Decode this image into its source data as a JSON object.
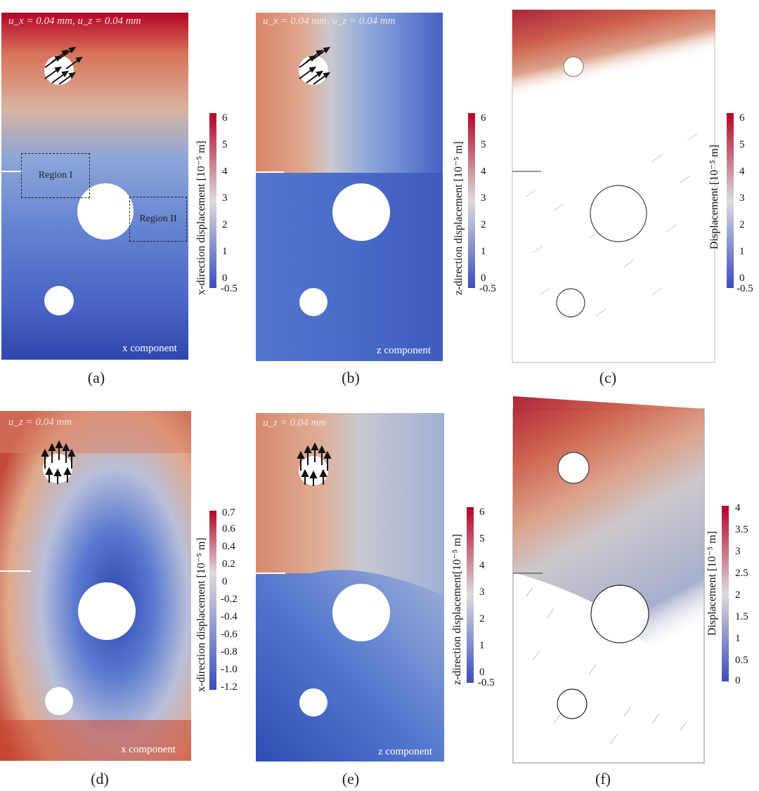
{
  "panels": {
    "a": {
      "caption": "(a)",
      "load_label": "u_x = 0.04 mm, u_z = 0.04 mm",
      "component": "x component",
      "cbar_title": "x-direction displacement [10⁻⁵ m]",
      "ticks": [
        "6",
        "5",
        "4",
        "3",
        "2",
        "1",
        "0",
        "-0.5"
      ],
      "regions": [
        "Region I",
        "Region II"
      ]
    },
    "b": {
      "caption": "(b)",
      "load_label": "u_x = 0.04 mm, u_z = 0.04 mm",
      "component": "z component",
      "cbar_title": "z-direction displacement [10⁻⁵ m]",
      "ticks": [
        "6",
        "5",
        "4",
        "3",
        "2",
        "1",
        "0",
        "-0.5"
      ]
    },
    "c": {
      "caption": "(c)",
      "cbar_title": "Displacement [10⁻⁵ m]",
      "ticks": [
        "6",
        "5",
        "4",
        "3",
        "2",
        "1",
        "0",
        "-0.5"
      ]
    },
    "d": {
      "caption": "(d)",
      "load_label": "u_z = 0.04 mm",
      "component": "x component",
      "cbar_title": "x-direction displacement [10⁻⁵ m]",
      "ticks": [
        "0.7",
        "0.6",
        "0.4",
        "0.2",
        "0",
        "-0.2",
        "-0.4",
        "-0.6",
        "-0.8",
        "-1.0",
        "-1.2"
      ]
    },
    "e": {
      "caption": "(e)",
      "load_label": "u_z = 0.04 mm",
      "component": "z component",
      "cbar_title": "z-direction displacement[10⁻⁵ m]",
      "ticks": [
        "6",
        "5",
        "4",
        "3",
        "2",
        "1",
        "0",
        "-0.5"
      ]
    },
    "f": {
      "caption": "(f)",
      "cbar_title": "Displacement [10⁻⁵ m]",
      "ticks": [
        "4",
        "3.5",
        "3",
        "2.5",
        "2",
        "1.5",
        "1",
        "0.5",
        "0"
      ]
    }
  },
  "colors": {
    "high": "#b40426",
    "mid": "#dcdcdc",
    "low": "#3b4cc0",
    "warm": "#e08a6a",
    "cool": "#5b7fd6"
  }
}
